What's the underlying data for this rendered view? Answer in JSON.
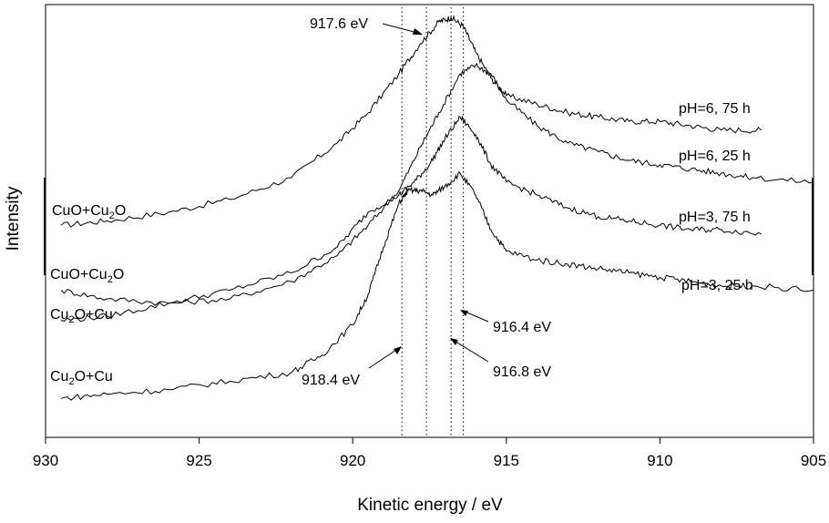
{
  "chart_data": {
    "type": "line",
    "title": "",
    "xlabel": "Kinetic energy / eV",
    "ylabel": "Intensity",
    "xlim": [
      930,
      905
    ],
    "x_reversed": true,
    "ylim": [
      0,
      100
    ],
    "y_ticks_shown": false,
    "x_ticks": [
      930,
      925,
      920,
      915,
      910,
      905
    ],
    "x_tick_labels": [
      "930",
      "925",
      "920",
      "915",
      "910",
      "905"
    ],
    "grid": false,
    "legend": "none",
    "reference_lines": [
      {
        "x": 918.4,
        "label": "918.4 eV"
      },
      {
        "x": 917.6,
        "label": "917.6 eV"
      },
      {
        "x": 916.8,
        "label": "916.8 eV"
      },
      {
        "x": 916.4,
        "label": "916.4 eV"
      }
    ],
    "series": [
      {
        "name": "pH=6, 75 h",
        "left_label_main": "CuO+Cu",
        "left_label_sub": "2",
        "left_label_tail": "O",
        "x": [
          929.5,
          928,
          926,
          924,
          922,
          920.5,
          919.5,
          918.5,
          917.8,
          917.2,
          916.8,
          916.4,
          916,
          915.5,
          915,
          914,
          913,
          912,
          911,
          910,
          909,
          908,
          906.7
        ],
        "y": [
          49,
          50,
          52,
          55,
          60,
          68,
          75,
          84,
          91,
          96,
          97,
          95,
          89,
          83,
          79,
          77,
          75,
          74,
          73,
          73,
          72,
          71,
          71
        ]
      },
      {
        "name": "pH=6, 25 h",
        "left_label_main": "CuO+Cu",
        "left_label_sub": "2",
        "left_label_tail": "O",
        "x": [
          929.5,
          928,
          926,
          924,
          922,
          920.5,
          919.5,
          918.5,
          917.8,
          917.2,
          916.5,
          916,
          915.5,
          915,
          914,
          913,
          912,
          911,
          910,
          909,
          908,
          907,
          905
        ],
        "y": [
          34,
          32,
          31,
          32,
          36,
          42,
          49,
          57,
          67,
          75,
          84,
          86,
          84,
          78,
          72,
          68,
          66,
          64,
          63,
          62,
          61,
          60,
          59
        ]
      },
      {
        "name": "pH=3, 75 h",
        "left_label_main": "Cu",
        "left_label_sub": "2",
        "left_label_tail": "O+Cu",
        "x": [
          929.5,
          928,
          926,
          924,
          922,
          920.5,
          919.5,
          918.5,
          918,
          917.5,
          917,
          916.5,
          916,
          915.5,
          915,
          914,
          913,
          912,
          911,
          910,
          909,
          908,
          906.7
        ],
        "y": [
          27,
          28,
          31,
          34,
          38,
          44,
          52,
          56,
          59,
          63,
          69,
          74,
          70,
          63,
          59,
          56,
          53,
          51,
          50,
          49,
          48,
          48,
          47
        ]
      },
      {
        "name": "pH=3, 25 h",
        "left_label_main": "Cu",
        "left_label_sub": "2",
        "left_label_tail": "O+Cu",
        "x": [
          929.5,
          928,
          926,
          924,
          922,
          921,
          920,
          919.5,
          919,
          918.5,
          918.2,
          917.8,
          917.4,
          917,
          916.5,
          916,
          915.5,
          915,
          914,
          913,
          912,
          911,
          910,
          909,
          908,
          907,
          905
        ],
        "y": [
          9,
          10,
          11,
          13,
          15,
          19,
          26,
          33,
          44,
          54,
          57,
          57,
          56,
          58,
          61,
          56,
          48,
          43,
          41,
          40,
          39,
          38,
          37,
          36,
          35,
          35,
          34
        ]
      }
    ]
  }
}
